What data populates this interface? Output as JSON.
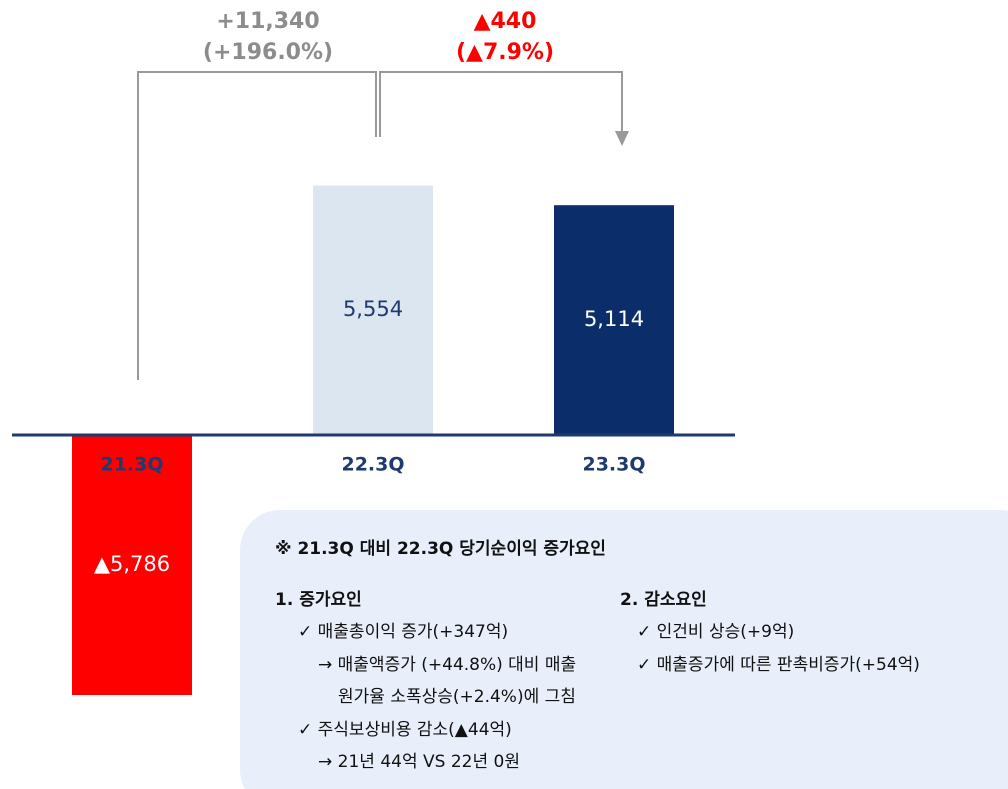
{
  "chart_data": {
    "type": "bar",
    "categories": [
      "21.3Q",
      "22.3Q",
      "23.3Q"
    ],
    "values": [
      -5786,
      5554,
      5114
    ],
    "value_labels": [
      "▲5,786",
      "5,554",
      "5,114"
    ],
    "colors": [
      "#ff0000",
      "#dce6f1",
      "#0b2e6b"
    ],
    "annotations": [
      "+11,340",
      "(+196.0%)",
      "▲440",
      "(▲7.9%)"
    ]
  },
  "note": {
    "title": "※ 21.3Q 대비 22.3Q 당기순이익 증가요인",
    "sections": [
      {
        "heading": "1. 증가요인",
        "lines": [
          "✓ 매출총이익 증가(+347억)",
          "→ 매출액증가 (+44.8%) 대비 매출",
          "원가율 소폭상승(+2.4%)에 그침",
          "✓ 주식보상비용 감소(▲44억)",
          "→ 21년 44억 VS 22년 0원"
        ]
      },
      {
        "heading": "2. 감소요인",
        "lines": [
          "✓ 인건비 상승(+9억)",
          "✓ 매출증가에 따른 판촉비증가(+54억)"
        ]
      }
    ]
  }
}
